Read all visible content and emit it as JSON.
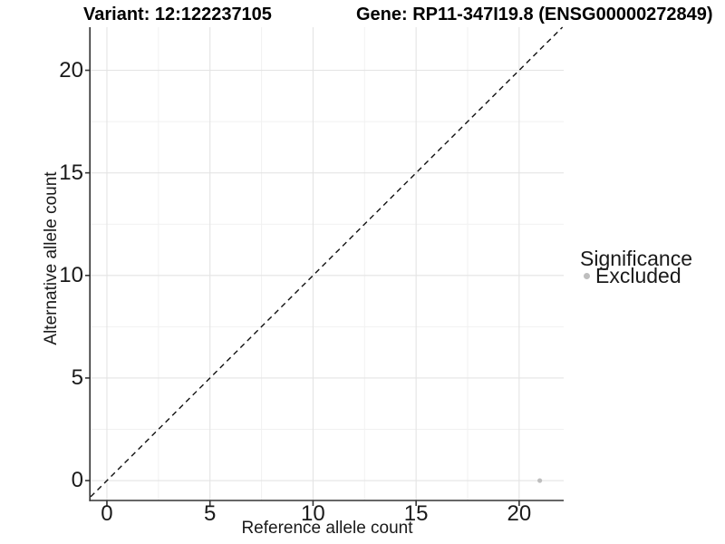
{
  "titles": {
    "variant": "Variant: 12:122237105",
    "gene": "Gene: RP11-347I19.8 (ENSG00000272849)"
  },
  "chart_data": {
    "type": "scatter",
    "title_left": "Variant: 12:122237105",
    "title_right": "Gene: RP11-347I19.8 (ENSG00000272849)",
    "xlabel": "Reference allele count",
    "ylabel": "Alternative allele count",
    "xlim": [
      -0.79,
      22.16
    ],
    "ylim": [
      -0.97,
      22.1
    ],
    "x_major_ticks": [
      0,
      5,
      10,
      15,
      20
    ],
    "x_minor_ticks": [
      2.5,
      7.5,
      12.5,
      17.5
    ],
    "y_major_ticks": [
      0,
      5,
      10,
      15,
      20
    ],
    "y_minor_ticks": [
      2.5,
      7.5,
      12.5,
      17.5
    ],
    "grid": {
      "major": true,
      "minor": true
    },
    "reference_line": {
      "type": "identity",
      "equation": "y = x",
      "style": "dashed",
      "color": "#111111"
    },
    "legend": {
      "title": "Significance",
      "position": "right",
      "items": [
        {
          "label": "Excluded",
          "color": "#bebebe"
        }
      ]
    },
    "series": [
      {
        "name": "Excluded",
        "color": "#bebebe",
        "point_radius": 2.6,
        "points": [
          [
            21,
            0
          ]
        ]
      }
    ]
  },
  "colors": {
    "background": "#ffffff",
    "axis_line": "#333333",
    "tick_mark": "#333333",
    "grid_major": "#e4e4e4",
    "grid_minor": "#f1f1f1",
    "point": "#bebebe",
    "dash_line": "#111111",
    "text": "#1a1a1a"
  }
}
